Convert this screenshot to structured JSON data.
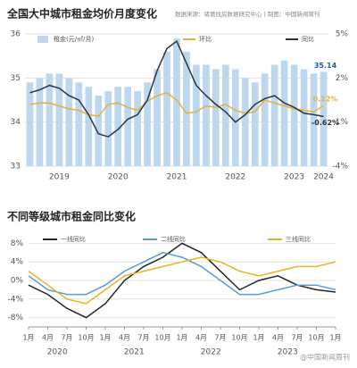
{
  "chart_data": [
    {
      "type": "bar",
      "title": "全国大中城市租金均价月度变化",
      "source": "数据来源：诸葛找房数据研究中心 | 制图：中国新闻周刊",
      "categories": [
        null,
        null,
        null,
        "2019",
        null,
        null,
        null,
        null,
        null,
        "2020",
        null,
        null,
        null,
        null,
        null,
        "2021",
        null,
        null,
        null,
        null,
        null,
        "2022",
        null,
        null,
        null,
        null,
        null,
        "2023",
        null,
        null,
        "2024"
      ],
      "series": [
        {
          "name": "租金(元/㎡/月)",
          "color": "#bcd7ee",
          "values": [
            34.9,
            35.0,
            35.1,
            35.1,
            35.0,
            34.9,
            34.8,
            34.6,
            34.7,
            34.8,
            34.8,
            34.7,
            34.9,
            35.2,
            35.6,
            35.9,
            35.6,
            35.3,
            35.3,
            35.2,
            35.3,
            35.2,
            35.0,
            34.9,
            35.1,
            35.3,
            35.4,
            35.3,
            35.2,
            35.1,
            35.14
          ],
          "value_labels": [
            null,
            null,
            null,
            null,
            null,
            null,
            null,
            null,
            null,
            null,
            null,
            null,
            null,
            null,
            null,
            null,
            null,
            null,
            null,
            null,
            null,
            null,
            null,
            null,
            null,
            null,
            null,
            null,
            null,
            null,
            "35.14"
          ]
        },
        {
          "name": "环比",
          "color": "#e0b43a",
          "axis": "y2",
          "values": [
            0.2,
            0.3,
            0.3,
            0.1,
            -0.1,
            -0.2,
            -0.5,
            -0.6,
            0.2,
            0.3,
            0.0,
            -0.2,
            0.4,
            0.8,
            1.0,
            0.5,
            -0.4,
            -0.3,
            0.1,
            0.0,
            0.2,
            -0.2,
            -0.4,
            -0.3,
            0.5,
            0.3,
            0.1,
            -0.1,
            -0.2,
            -0.3,
            0.12
          ],
          "value_labels": [
            null,
            null,
            null,
            null,
            null,
            null,
            null,
            null,
            null,
            null,
            null,
            null,
            null,
            null,
            null,
            null,
            null,
            null,
            null,
            null,
            null,
            null,
            null,
            null,
            null,
            null,
            null,
            null,
            null,
            null,
            "0.12%"
          ]
        },
        {
          "name": "同比",
          "color": "#2e3444",
          "axis": "y2",
          "values": [
            1.0,
            1.2,
            1.5,
            1.3,
            0.8,
            0.5,
            -0.5,
            -1.8,
            -2.0,
            -1.5,
            -0.8,
            -0.5,
            0.5,
            2.5,
            4.0,
            4.5,
            3.0,
            1.5,
            0.8,
            0.2,
            -0.3,
            -1.0,
            -0.5,
            0.2,
            0.6,
            0.8,
            0.3,
            0.0,
            -0.4,
            -0.5,
            -0.62
          ],
          "value_labels": [
            null,
            null,
            null,
            null,
            null,
            null,
            null,
            null,
            null,
            null,
            null,
            null,
            null,
            null,
            null,
            null,
            null,
            null,
            null,
            null,
            null,
            null,
            null,
            null,
            null,
            null,
            null,
            null,
            null,
            null,
            "-0.62%"
          ]
        }
      ],
      "ylim": [
        33,
        36
      ],
      "yticks": [
        33,
        34,
        35,
        36
      ],
      "y2lim": [
        -4,
        5
      ],
      "y2ticks": [
        {
          "value": -4,
          "label": "-4%"
        },
        {
          "value": -1,
          "label": "-1%"
        },
        {
          "value": 2,
          "label": "2%"
        },
        {
          "value": 5,
          "label": "5%"
        }
      ],
      "grid": true
    },
    {
      "type": "line",
      "title": "不同等级城市租金同比变化",
      "categories": [
        "1月",
        "4月",
        "7月",
        "10月",
        "1月",
        "4月",
        "7月",
        "10月",
        "1月",
        "4月",
        "7月",
        "10月",
        "1月",
        "4月",
        "7月",
        "10月",
        "1月"
      ],
      "years": [
        "2020",
        "2021",
        "2022",
        "2023"
      ],
      "series": [
        {
          "name": "一线同比",
          "color": "#23252f",
          "values": [
            -1,
            -3,
            -6,
            -8,
            -5,
            0,
            3,
            5,
            8,
            6,
            2,
            -2,
            0,
            1,
            -1,
            -2,
            -2.5
          ]
        },
        {
          "name": "二线同比",
          "color": "#5b9bd5",
          "values": [
            1,
            -2,
            -3,
            -3,
            -1,
            2,
            4,
            6,
            5,
            3,
            0,
            -3,
            -3,
            -2,
            -1,
            -1,
            -2
          ]
        },
        {
          "name": "三线同比",
          "color": "#e6b422",
          "values": [
            2,
            -1,
            -4,
            -5,
            -2,
            1,
            2,
            3,
            4,
            5,
            4,
            2,
            1,
            2,
            3,
            3,
            4
          ]
        }
      ],
      "ylim": [
        -10,
        10
      ],
      "yticks": [
        {
          "value": -8,
          "label": "-8%"
        },
        {
          "value": -4,
          "label": "-4%"
        },
        {
          "value": 0,
          "label": "0%"
        },
        {
          "value": 4,
          "label": "4%"
        },
        {
          "value": 8,
          "label": "8%"
        }
      ],
      "grid": true,
      "watermark": "@中国新闻周刊"
    }
  ]
}
